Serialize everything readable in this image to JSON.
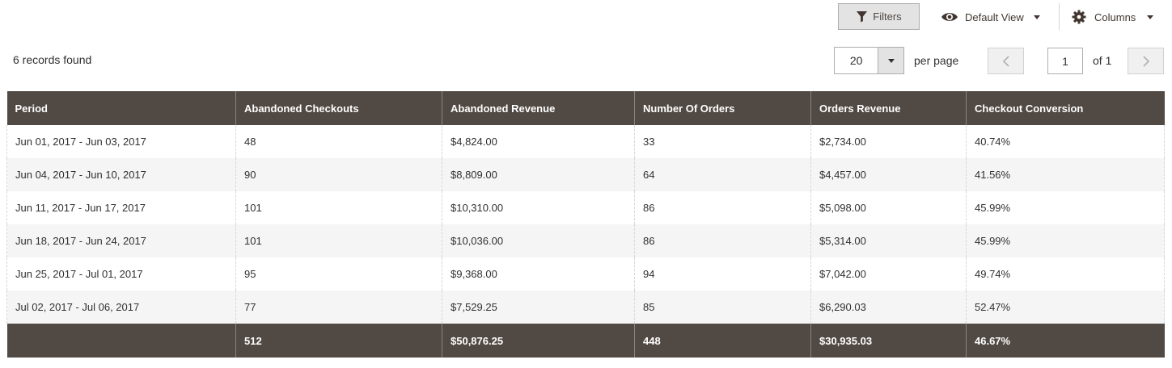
{
  "toolbar": {
    "filters_label": "Filters",
    "view_label": "Default View",
    "columns_label": "Columns",
    "icons": {
      "filters": "filter-icon",
      "view": "eye-icon",
      "columns": "gear-icon"
    }
  },
  "records_text": "6 records found",
  "pager": {
    "page_size": "20",
    "per_page_label": "per page",
    "current_page": "1",
    "of_label": "of 1"
  },
  "table": {
    "columns": [
      "Period",
      "Abandoned Checkouts",
      "Abandoned Revenue",
      "Number Of Orders",
      "Orders Revenue",
      "Checkout Conversion"
    ],
    "rows": [
      [
        "Jun 01, 2017 - Jun 03, 2017",
        "48",
        "$4,824.00",
        "33",
        "$2,734.00",
        "40.74%"
      ],
      [
        "Jun 04, 2017 - Jun 10, 2017",
        "90",
        "$8,809.00",
        "64",
        "$4,457.00",
        "41.56%"
      ],
      [
        "Jun 11, 2017 - Jun 17, 2017",
        "101",
        "$10,310.00",
        "86",
        "$5,098.00",
        "45.99%"
      ],
      [
        "Jun 18, 2017 - Jun 24, 2017",
        "101",
        "$10,036.00",
        "86",
        "$5,314.00",
        "45.99%"
      ],
      [
        "Jun 25, 2017 - Jul 01, 2017",
        "95",
        "$9,368.00",
        "94",
        "$7,042.00",
        "49.74%"
      ],
      [
        "Jul 02, 2017 - Jul 06, 2017",
        "77",
        "$7,529.25",
        "85",
        "$6,290.03",
        "52.47%"
      ]
    ],
    "totals": [
      "",
      "512",
      "$50,876.25",
      "448",
      "$30,935.03",
      "46.67%"
    ]
  },
  "colors": {
    "header_bg": "#514943",
    "header_text": "#ffffff",
    "row_alt": "#f5f5f5",
    "button_bg": "#e3e3e3"
  }
}
